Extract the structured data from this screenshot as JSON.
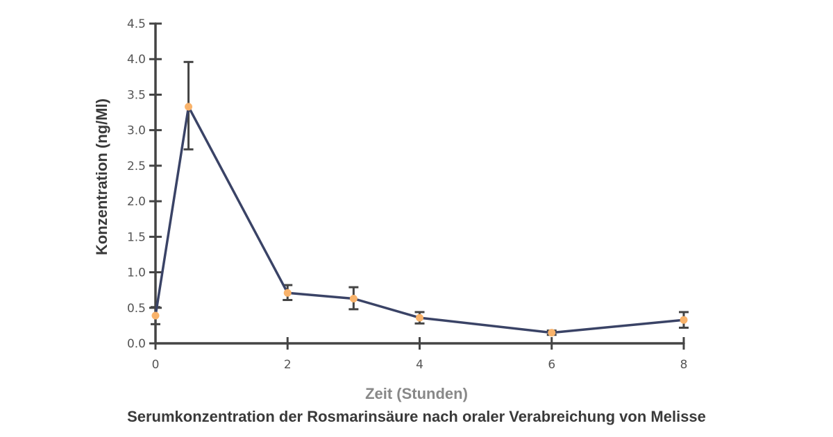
{
  "chart_data": {
    "type": "line",
    "title": "Serumkonzentration der Rosmarinsäure nach oraler Verabreichung von Melisse",
    "xlabel": "Zeit (Stunden)",
    "ylabel": "Konzentration (ng/Ml)",
    "xlim": [
      0,
      8
    ],
    "ylim": [
      0,
      4.5
    ],
    "x_ticks": [
      0,
      2,
      4,
      6,
      8
    ],
    "x_tick_labels": [
      "0",
      "2",
      "4",
      "6",
      "8"
    ],
    "y_ticks": [
      0,
      0.5,
      1.0,
      1.5,
      2.0,
      2.5,
      3.0,
      3.5,
      4.0,
      4.5
    ],
    "y_tick_labels": [
      "0.0",
      "0.5",
      "1.0",
      "1.5",
      "2.0",
      "2.5",
      "3.0",
      "3.5",
      "4.0",
      "4.5"
    ],
    "grid": false,
    "legend": "none",
    "series": [
      {
        "x": [
          0,
          0.5,
          2,
          3,
          4,
          6,
          8
        ],
        "y": [
          0.39,
          3.33,
          0.71,
          0.63,
          0.36,
          0.15,
          0.33
        ],
        "error_low": [
          0.27,
          2.73,
          0.61,
          0.48,
          0.28,
          0.12,
          0.22
        ],
        "error_high": [
          0.51,
          3.96,
          0.82,
          0.79,
          0.44,
          0.18,
          0.44
        ]
      }
    ],
    "colors": {
      "line": "#3a4366",
      "marker": "#f9b36b",
      "axis": "#444444",
      "error_bar": "#444444",
      "tick_label": "#555555",
      "xlabel": "#888888",
      "ylabel": "#3a3a3a",
      "title": "#3a3a3a"
    }
  }
}
